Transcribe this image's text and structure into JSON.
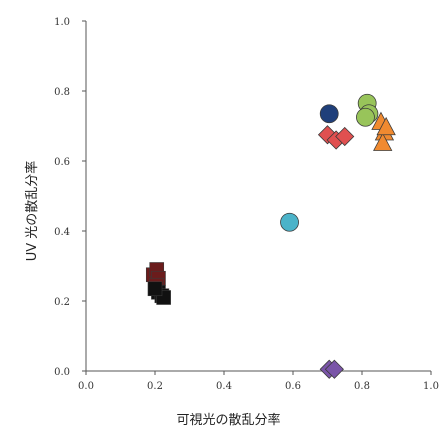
{
  "chart_data": {
    "type": "scatter",
    "title": "",
    "xlabel": "可視光の散乱分率",
    "ylabel": "UV 光の散乱分率",
    "xlim": [
      0.0,
      1.0
    ],
    "ylim": [
      0.0,
      1.0
    ],
    "xticks": [
      "0.0",
      "0.2",
      "0.4",
      "0.6",
      "0.8",
      "1.0"
    ],
    "yticks": [
      "0.0",
      "0.2",
      "0.4",
      "0.6",
      "0.8",
      "1.0"
    ],
    "grid": false,
    "legend": "none",
    "series": [
      {
        "marker": "square",
        "color": "#6b1c1c",
        "points": [
          [
            0.195,
            0.275
          ],
          [
            0.205,
            0.29
          ],
          [
            0.21,
            0.265
          ],
          [
            0.205,
            0.245
          ]
        ]
      },
      {
        "marker": "square",
        "color": "#111111",
        "points": [
          [
            0.21,
            0.225
          ],
          [
            0.22,
            0.215
          ],
          [
            0.225,
            0.21
          ],
          [
            0.2,
            0.235
          ]
        ]
      },
      {
        "marker": "circle",
        "color": "#4bb3c9",
        "points": [
          [
            0.59,
            0.425
          ]
        ]
      },
      {
        "marker": "circle",
        "color": "#1f3f7a",
        "points": [
          [
            0.705,
            0.735
          ]
        ]
      },
      {
        "marker": "diamond",
        "color": "#e05050",
        "points": [
          [
            0.7,
            0.675
          ],
          [
            0.725,
            0.66
          ],
          [
            0.75,
            0.67
          ]
        ]
      },
      {
        "marker": "circle",
        "color": "#98c45a",
        "points": [
          [
            0.815,
            0.765
          ],
          [
            0.82,
            0.735
          ],
          [
            0.81,
            0.725
          ]
        ]
      },
      {
        "marker": "triangle",
        "color": "#f08a30",
        "points": [
          [
            0.855,
            0.71
          ],
          [
            0.865,
            0.68
          ],
          [
            0.86,
            0.65
          ],
          [
            0.87,
            0.695
          ]
        ]
      },
      {
        "marker": "diamond",
        "color": "#7a55a8",
        "points": [
          [
            0.705,
            0.005
          ],
          [
            0.72,
            0.005
          ]
        ]
      }
    ]
  }
}
